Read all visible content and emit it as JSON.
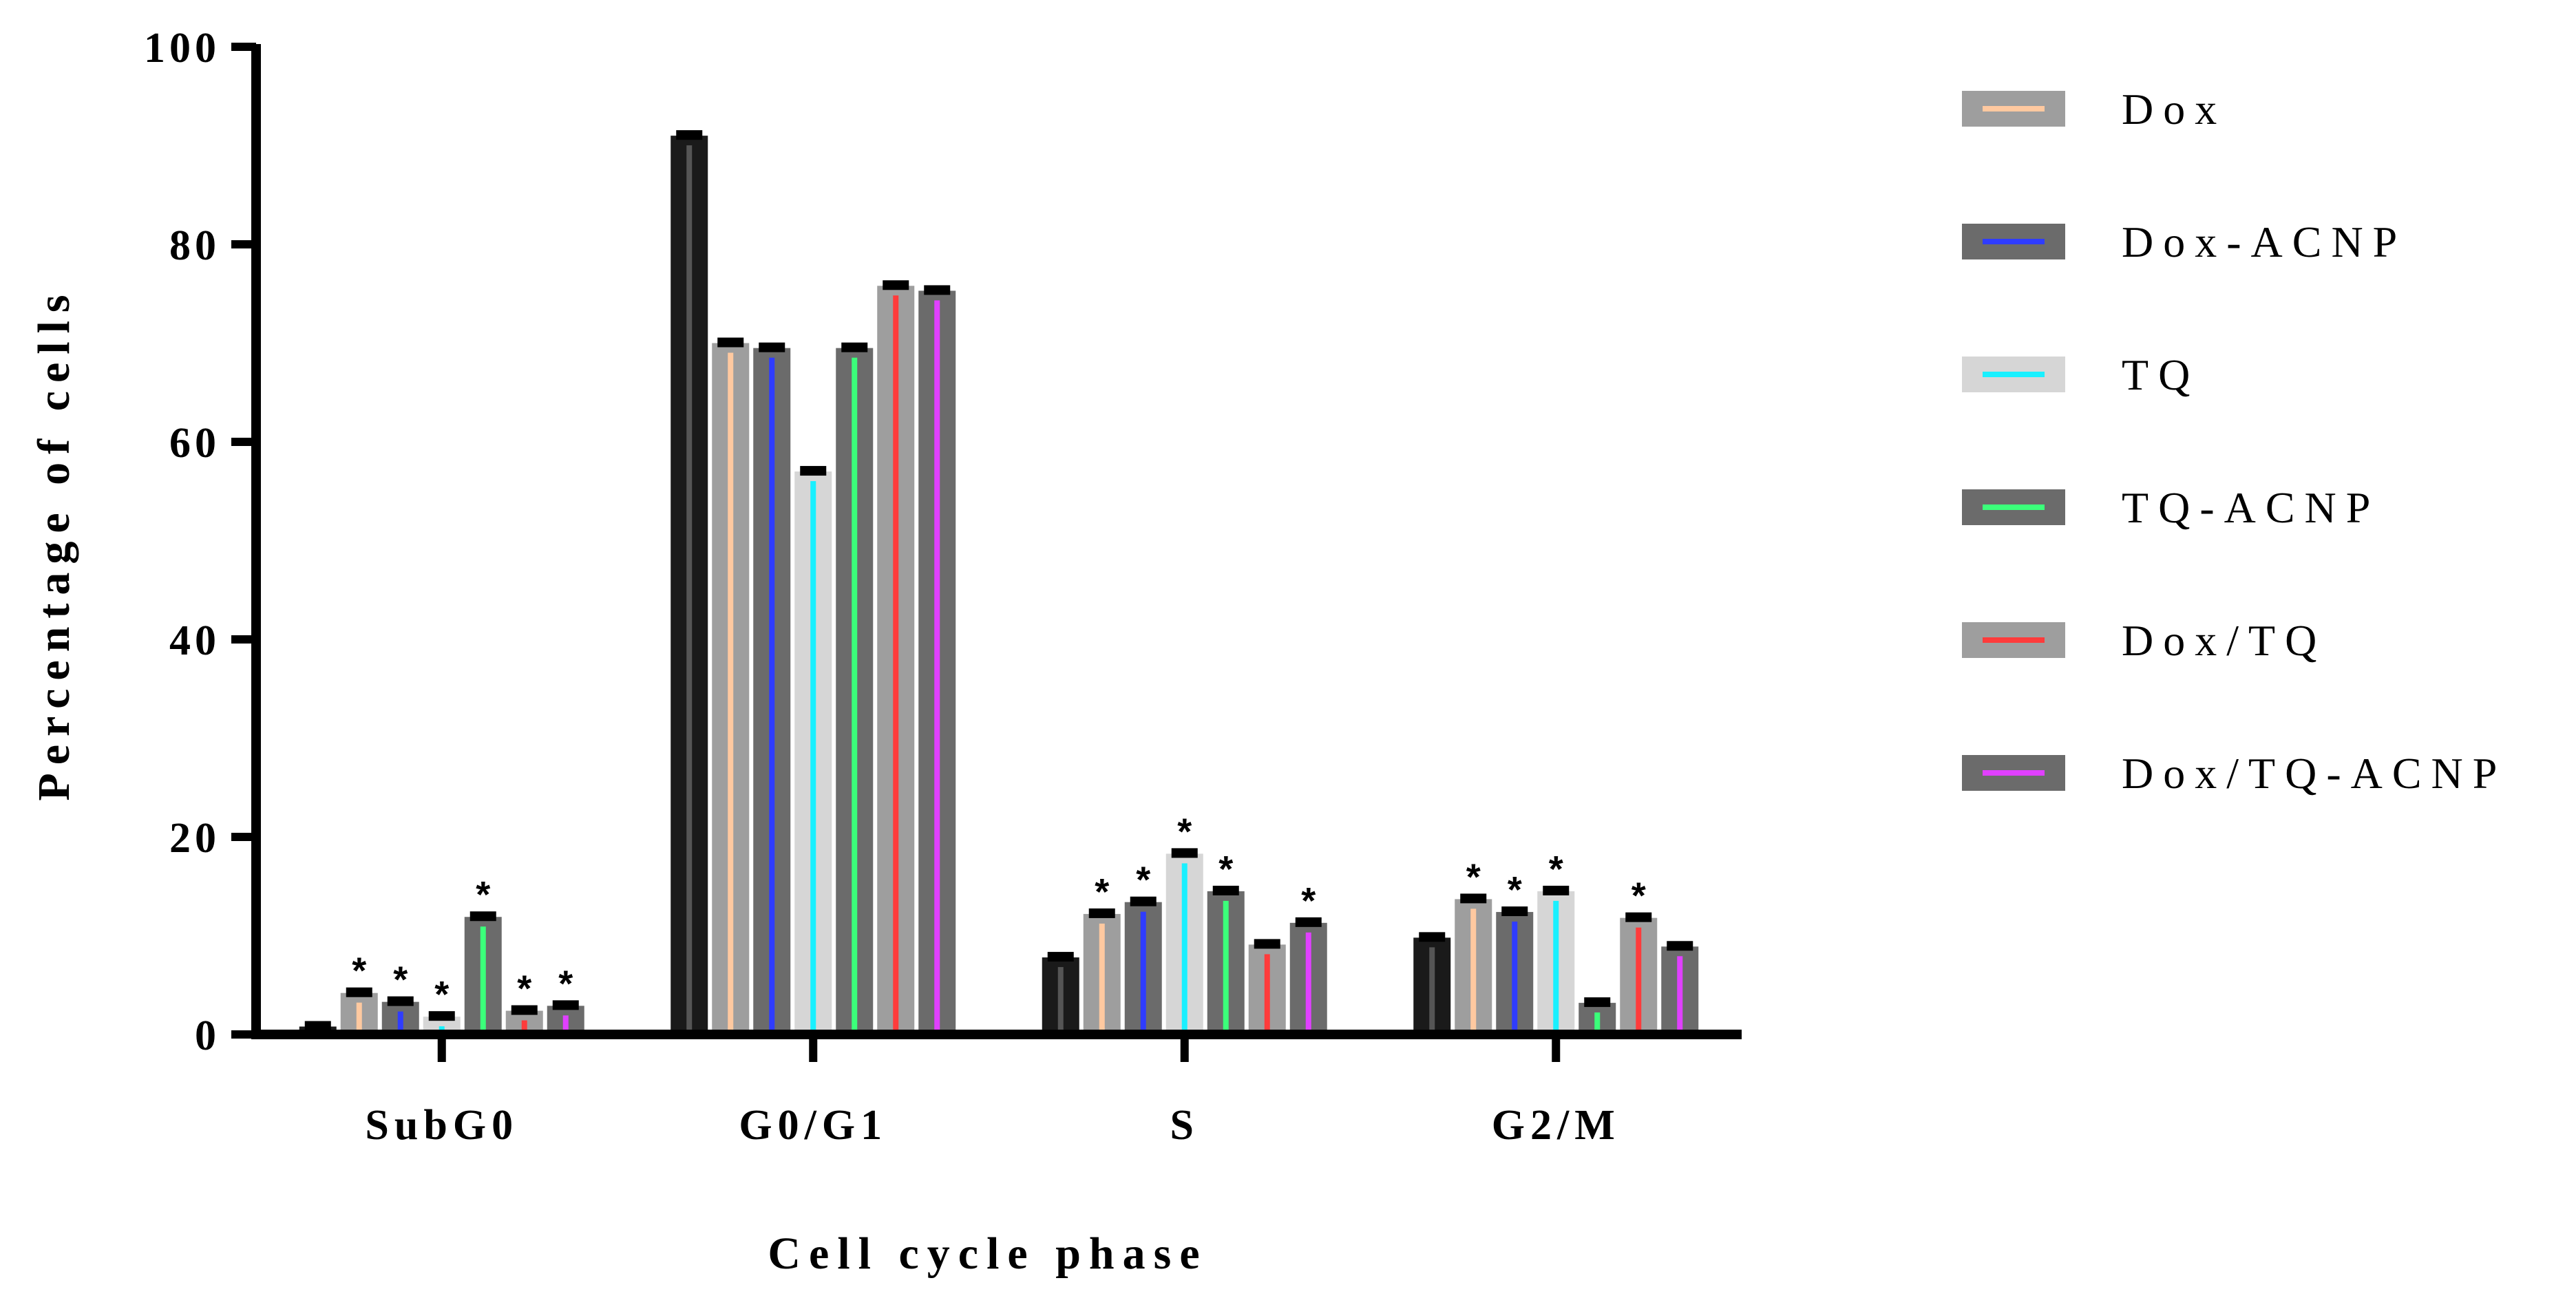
{
  "chart_data": {
    "type": "bar",
    "xlabel": "Cell cycle phase",
    "ylabel": "Percentage of cells",
    "ylim": [
      0,
      100
    ],
    "yticks": [
      0,
      20,
      40,
      60,
      80,
      100
    ],
    "categories": [
      "SubG0",
      "G0/G1",
      "S",
      "G2/M"
    ],
    "legend_position": "right",
    "series": [
      {
        "name": "",
        "bar_color": "#1a1a1a",
        "line_color": "#555555",
        "values": [
          0.8,
          91,
          7.8,
          9.8
        ],
        "significant": [
          false,
          false,
          false,
          false
        ]
      },
      {
        "name": "Dox",
        "bar_color": "#9e9e9e",
        "line_color": "#ffc9a0",
        "values": [
          4.2,
          70,
          12.2,
          13.7
        ],
        "significant": [
          true,
          false,
          true,
          true
        ]
      },
      {
        "name": "Dox-ACNP",
        "bar_color": "#6b6b6b",
        "line_color": "#2f3cff",
        "values": [
          3.3,
          69.5,
          13.4,
          12.4
        ],
        "significant": [
          true,
          false,
          true,
          true
        ]
      },
      {
        "name": "TQ",
        "bar_color": "#d6d6d6",
        "line_color": "#19f0ff",
        "values": [
          1.8,
          57,
          18.3,
          14.5
        ],
        "significant": [
          true,
          false,
          true,
          true
        ]
      },
      {
        "name": "TQ-ACNP",
        "bar_color": "#6b6b6b",
        "line_color": "#3bff7a",
        "values": [
          11.9,
          69.5,
          14.5,
          3.2
        ],
        "significant": [
          true,
          false,
          true,
          false
        ]
      },
      {
        "name": "Dox/TQ",
        "bar_color": "#9e9e9e",
        "line_color": "#ff3b3b",
        "values": [
          2.4,
          75.8,
          9.1,
          11.8
        ],
        "significant": [
          true,
          false,
          false,
          true
        ]
      },
      {
        "name": "Dox/TQ-ACNP",
        "bar_color": "#6b6b6b",
        "line_color": "#e040ff",
        "values": [
          2.9,
          75.3,
          11.3,
          8.9
        ],
        "significant": [
          true,
          false,
          true,
          false
        ]
      }
    ]
  }
}
